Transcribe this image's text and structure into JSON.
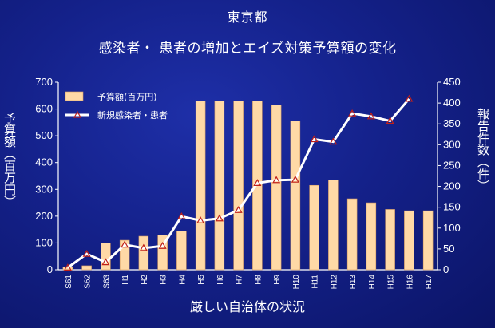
{
  "header": {
    "title": "東京都",
    "subtitle": "感染者・ 患者の増加とエイズ対策予算額の変化"
  },
  "footer": {
    "caption": "厳しい自治体の状況"
  },
  "colors": {
    "bar": "#ffd9a6",
    "bar_edge": "#d9a066",
    "line": "#ffffff",
    "marker": "#c0201a"
  },
  "chart_data": {
    "type": "bar",
    "categories": [
      "S61",
      "S62",
      "S63",
      "H1",
      "H2",
      "H3",
      "H4",
      "H5",
      "H6",
      "H7",
      "H8",
      "H9",
      "H10",
      "H11",
      "H12",
      "H13",
      "H14",
      "H15",
      "H16",
      "H17"
    ],
    "ylabel_left": "予算額（百万円）",
    "ylabel_right": "報告件数（件）",
    "ylim_left": [
      0,
      700
    ],
    "ylim_right": [
      0,
      450
    ],
    "yticks_left": [
      0,
      100,
      200,
      300,
      400,
      500,
      600,
      700
    ],
    "yticks_right": [
      0,
      50,
      100,
      150,
      200,
      250,
      300,
      350,
      400,
      450
    ],
    "legend_position": "top-left",
    "series": [
      {
        "name": "予算額(百万円)",
        "kind": "bar",
        "axis": "left",
        "values": [
          10,
          15,
          100,
          110,
          125,
          130,
          145,
          630,
          630,
          630,
          630,
          615,
          555,
          315,
          335,
          265,
          250,
          225,
          220,
          220
        ]
      },
      {
        "name": "新規感染者・患者",
        "kind": "line",
        "axis": "right",
        "values": [
          5,
          38,
          18,
          60,
          52,
          57,
          128,
          118,
          123,
          143,
          208,
          215,
          216,
          313,
          307,
          375,
          368,
          357,
          410,
          null
        ]
      }
    ]
  }
}
